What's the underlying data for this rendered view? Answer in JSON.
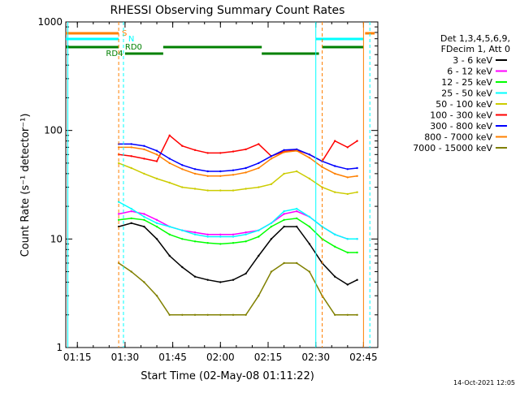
{
  "chart_data": {
    "type": "line",
    "title": "RHESSI Observing Summary Count Rates",
    "xlabel": "Start Time (02-May-08 01:11:22)",
    "ylabel": "Count Rate (s⁻¹ detector⁻¹)",
    "y_scale": "log",
    "ylim": [
      1,
      1000
    ],
    "xlim": [
      "01:11:22",
      "02:49:30"
    ],
    "x_ticks": [
      "01:15",
      "01:30",
      "01:45",
      "02:00",
      "02:15",
      "02:30",
      "02:45"
    ],
    "y_ticks": [
      "1",
      "10",
      "100",
      "1000"
    ],
    "legend": {
      "placement": "right",
      "header": [
        "Det 1,3,4,5,6,9,",
        "FDecim 1, Att 0"
      ]
    },
    "series": [
      {
        "name": "3 - 6 keV",
        "color": "#000000",
        "x": [
          "01:28",
          "01:32",
          "01:36",
          "01:40",
          "01:44",
          "01:48",
          "01:52",
          "01:56",
          "02:00",
          "02:04",
          "02:08",
          "02:12",
          "02:16",
          "02:20",
          "02:24",
          "02:28",
          "02:32",
          "02:36",
          "02:40",
          "02:43"
        ],
        "y": [
          13,
          14,
          13,
          10,
          7,
          5.5,
          4.5,
          4.2,
          4.0,
          4.2,
          4.8,
          7,
          10,
          13,
          13,
          9,
          6,
          4.5,
          3.8,
          4.2
        ]
      },
      {
        "name": "6 - 12 keV",
        "color": "#ff00ff",
        "x": [
          "01:28",
          "01:32",
          "01:36",
          "01:40",
          "01:44",
          "01:48",
          "01:52",
          "01:56",
          "02:00",
          "02:04",
          "02:08",
          "02:12",
          "02:16",
          "02:20",
          "02:24",
          "02:28",
          "02:32",
          "02:36",
          "02:40",
          "02:43"
        ],
        "y": [
          17,
          18,
          17,
          15,
          13,
          12,
          11.5,
          11,
          11,
          11,
          11.5,
          12,
          14,
          17,
          18,
          16,
          13,
          11,
          10,
          10
        ]
      },
      {
        "name": "12 - 25 keV",
        "color": "#00ff00",
        "x": [
          "01:28",
          "01:32",
          "01:36",
          "01:40",
          "01:44",
          "01:48",
          "01:52",
          "01:56",
          "02:00",
          "02:04",
          "02:08",
          "02:12",
          "02:16",
          "02:20",
          "02:24",
          "02:28",
          "02:32",
          "02:36",
          "02:40",
          "02:43"
        ],
        "y": [
          15,
          15.5,
          15,
          13,
          11,
          10,
          9.5,
          9.2,
          9,
          9.2,
          9.5,
          10.5,
          13,
          15,
          15.5,
          13,
          10,
          8.5,
          7.5,
          7.5
        ]
      },
      {
        "name": "25 - 50 keV",
        "color": "#00ffff",
        "x": [
          "01:28",
          "01:32",
          "01:36",
          "01:40",
          "01:44",
          "01:48",
          "01:52",
          "01:56",
          "02:00",
          "02:04",
          "02:08",
          "02:12",
          "02:16",
          "02:20",
          "02:24",
          "02:28",
          "02:32",
          "02:36",
          "02:40",
          "02:43"
        ],
        "y": [
          22,
          19,
          16,
          14,
          13,
          12,
          11,
          10.5,
          10.5,
          10.5,
          11,
          12,
          14,
          18,
          19,
          16,
          13,
          11,
          10,
          10
        ]
      },
      {
        "name": "50 - 100 keV",
        "color": "#cccc00",
        "x": [
          "01:28",
          "01:32",
          "01:36",
          "01:40",
          "01:44",
          "01:48",
          "01:52",
          "01:56",
          "02:00",
          "02:04",
          "02:08",
          "02:12",
          "02:16",
          "02:20",
          "02:24",
          "02:28",
          "02:32",
          "02:36",
          "02:40",
          "02:43"
        ],
        "y": [
          50,
          45,
          40,
          36,
          33,
          30,
          29,
          28,
          28,
          28,
          29,
          30,
          32,
          40,
          42,
          36,
          30,
          27,
          26,
          27
        ]
      },
      {
        "name": "100 - 300 keV",
        "color": "#ff0000",
        "x": [
          "01:28",
          "01:32",
          "01:36",
          "01:40",
          "01:44",
          "01:48",
          "01:52",
          "01:56",
          "02:00",
          "02:04",
          "02:08",
          "02:12",
          "02:16",
          "02:20",
          "02:24",
          "02:28",
          "02:32",
          "02:36",
          "02:40",
          "02:43"
        ],
        "y": [
          60,
          58,
          55,
          52,
          90,
          72,
          66,
          62,
          62,
          64,
          67,
          75,
          58,
          64,
          66,
          60,
          52,
          80,
          70,
          80
        ]
      },
      {
        "name": "300 - 800 keV",
        "color": "#0000ff",
        "x": [
          "01:28",
          "01:32",
          "01:36",
          "01:40",
          "01:44",
          "01:48",
          "01:52",
          "01:56",
          "02:00",
          "02:04",
          "02:08",
          "02:12",
          "02:16",
          "02:20",
          "02:24",
          "02:28",
          "02:32",
          "02:36",
          "02:40",
          "02:43"
        ],
        "y": [
          75,
          75,
          72,
          65,
          55,
          48,
          44,
          42,
          42,
          43,
          45,
          50,
          58,
          66,
          67,
          60,
          52,
          47,
          44,
          45
        ]
      },
      {
        "name": "800 - 7000 keV",
        "color": "#ff8000",
        "x": [
          "01:28",
          "01:32",
          "01:36",
          "01:40",
          "01:44",
          "01:48",
          "01:52",
          "01:56",
          "02:00",
          "02:04",
          "02:08",
          "02:12",
          "02:16",
          "02:20",
          "02:24",
          "02:28",
          "02:32",
          "02:36",
          "02:40",
          "02:43"
        ],
        "y": [
          70,
          70,
          67,
          60,
          50,
          44,
          40,
          38,
          38,
          39,
          41,
          45,
          55,
          63,
          65,
          56,
          46,
          40,
          37,
          38
        ]
      },
      {
        "name": "7000 - 15000 keV",
        "color": "#808000",
        "x": [
          "01:28",
          "01:32",
          "01:36",
          "01:40",
          "01:44",
          "01:48",
          "01:52",
          "01:56",
          "02:00",
          "02:04",
          "02:08",
          "02:12",
          "02:16",
          "02:20",
          "02:24",
          "02:28",
          "02:32",
          "02:36",
          "02:40",
          "02:43"
        ],
        "y": [
          6,
          5,
          4,
          3,
          2,
          2,
          2,
          2,
          2,
          2,
          2,
          3,
          5,
          6,
          6,
          5,
          3,
          2,
          2,
          2
        ]
      }
    ],
    "flags": [
      {
        "label": "S",
        "color": "#ff8000"
      },
      {
        "label": "N",
        "color": "#00ffff"
      },
      {
        "label": "RD0",
        "color": "#008000"
      },
      {
        "label": "RD4",
        "color": "#008000"
      }
    ]
  },
  "footer": {
    "date": "14-Oct-2021 12:05"
  }
}
